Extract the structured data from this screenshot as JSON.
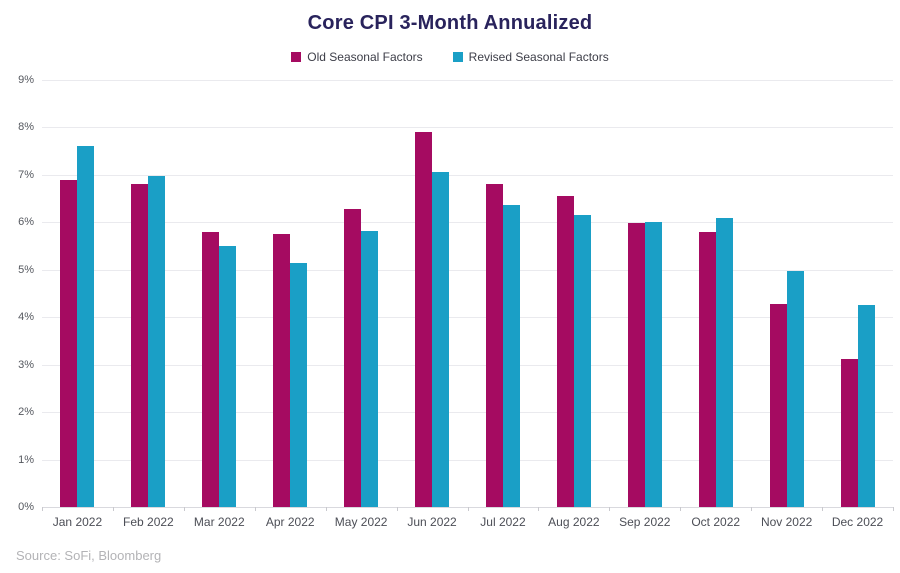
{
  "title": "Core CPI 3-Month Annualized",
  "source": "Source: SoFi, Bloomberg",
  "legend": [
    {
      "label": "Old Seasonal Factors",
      "color": "#a50b61"
    },
    {
      "label": "Revised Seasonal Factors",
      "color": "#1a9fc6"
    }
  ],
  "chart_data": {
    "type": "bar",
    "title": "Core CPI 3-Month Annualized",
    "categories": [
      "Jan 2022",
      "Feb 2022",
      "Mar 2022",
      "Apr 2022",
      "May 2022",
      "Jun 2022",
      "Jul 2022",
      "Aug 2022",
      "Sep 2022",
      "Oct 2022",
      "Nov 2022",
      "Dec 2022"
    ],
    "series": [
      {
        "name": "Old Seasonal Factors",
        "color": "#a50b61",
        "values": [
          6.9,
          6.8,
          5.8,
          5.75,
          6.28,
          7.9,
          6.8,
          6.55,
          5.98,
          5.8,
          4.27,
          3.13
        ]
      },
      {
        "name": "Revised Seasonal Factors",
        "color": "#1a9fc6",
        "values": [
          7.6,
          6.97,
          5.5,
          5.15,
          5.82,
          7.07,
          6.37,
          6.15,
          6.0,
          6.1,
          4.97,
          4.25
        ]
      }
    ],
    "xlabel": "",
    "ylabel": "",
    "ylim": [
      0,
      9
    ],
    "yticks": [
      0,
      1,
      2,
      3,
      4,
      5,
      6,
      7,
      8,
      9
    ],
    "ytick_suffix": "%",
    "grid": true,
    "legend_position": "top"
  }
}
